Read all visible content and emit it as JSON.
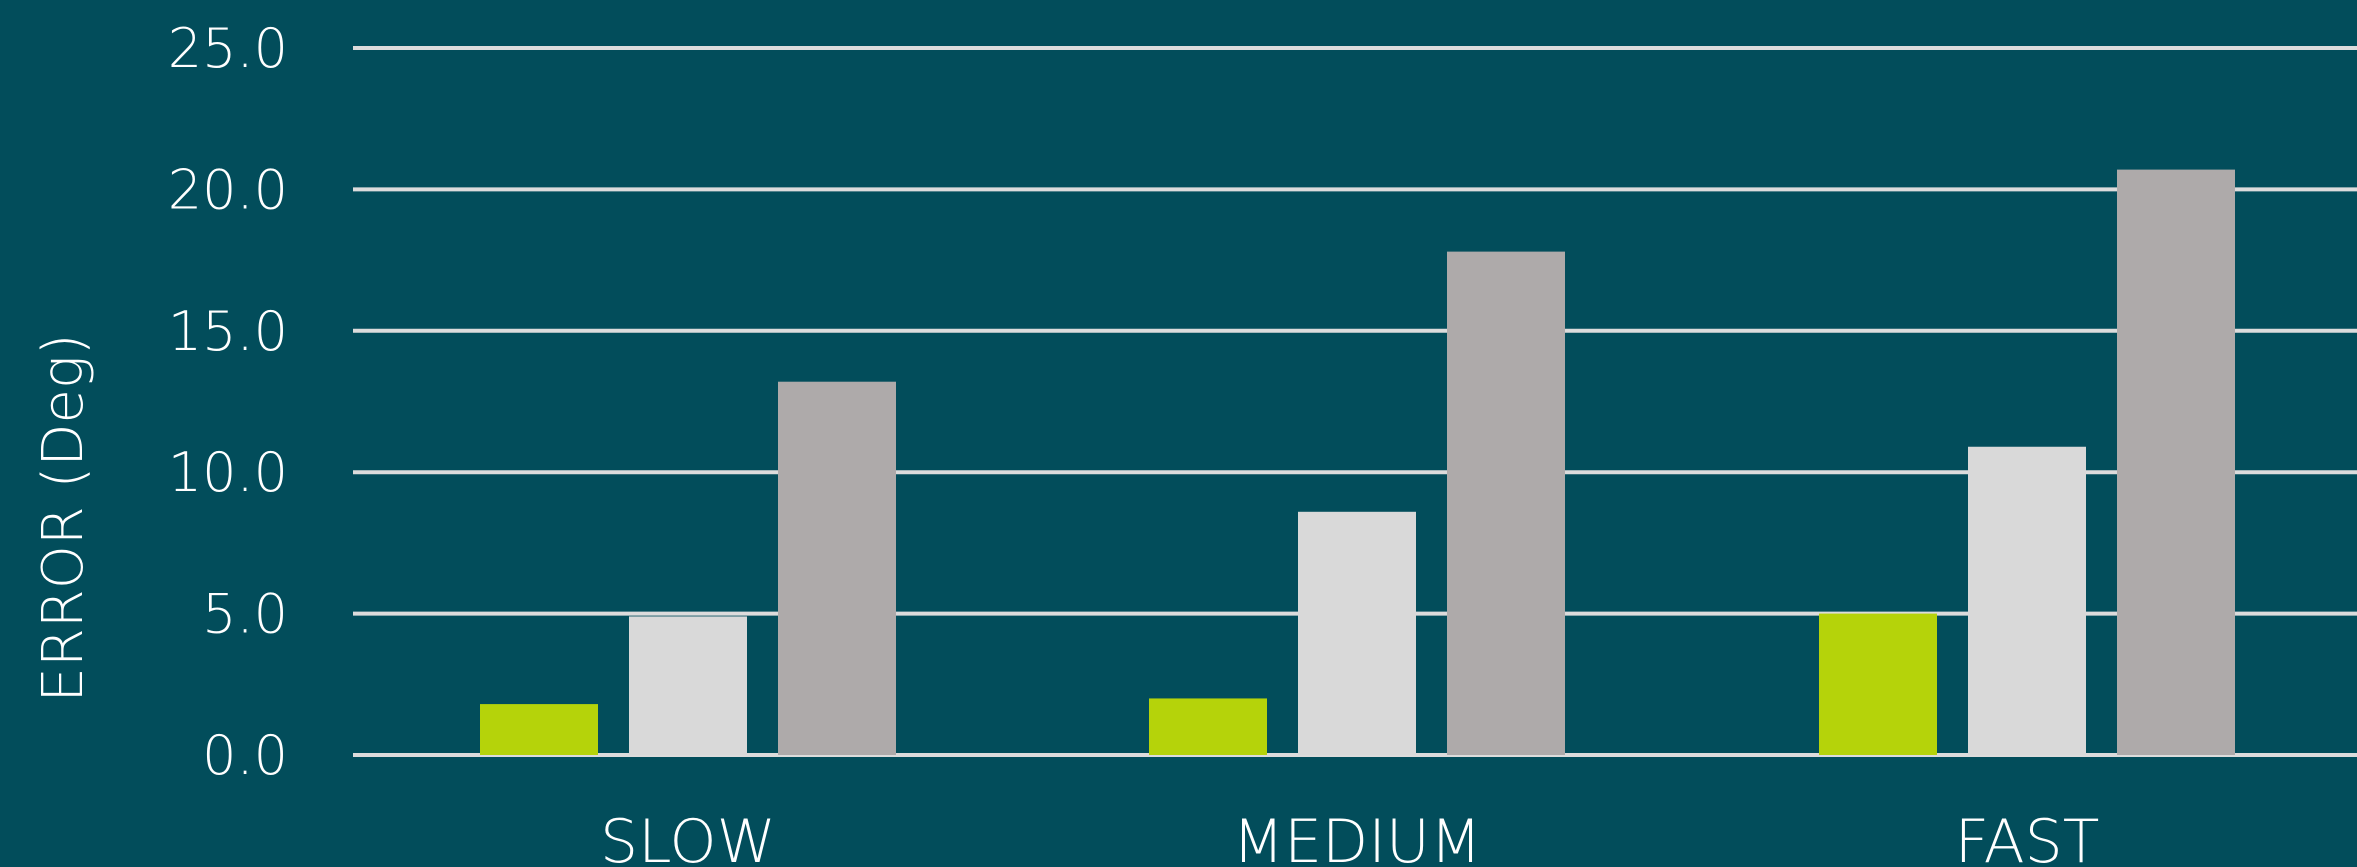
{
  "chart_data": {
    "type": "bar",
    "ylabel": "ERROR (Deg)",
    "xlabel": "",
    "categories": [
      "SLOW",
      "MEDIUM",
      "FAST"
    ],
    "ylim": [
      0,
      25
    ],
    "yticks": [
      "0.0",
      "5.0",
      "10.0",
      "15.0",
      "20.0",
      "25.0"
    ],
    "grid": true,
    "series": [
      {
        "color": "#b5d30a",
        "values": [
          1.8,
          2.0,
          5.0
        ]
      },
      {
        "color": "#d9d9d9",
        "values": [
          4.9,
          8.6,
          10.9
        ]
      },
      {
        "color": "#aeaaaa",
        "values": [
          13.2,
          17.8,
          20.7
        ]
      }
    ]
  },
  "colors": {
    "background": "#024d5b",
    "gridline": "#dcdcdc",
    "text": "#ffffff"
  }
}
